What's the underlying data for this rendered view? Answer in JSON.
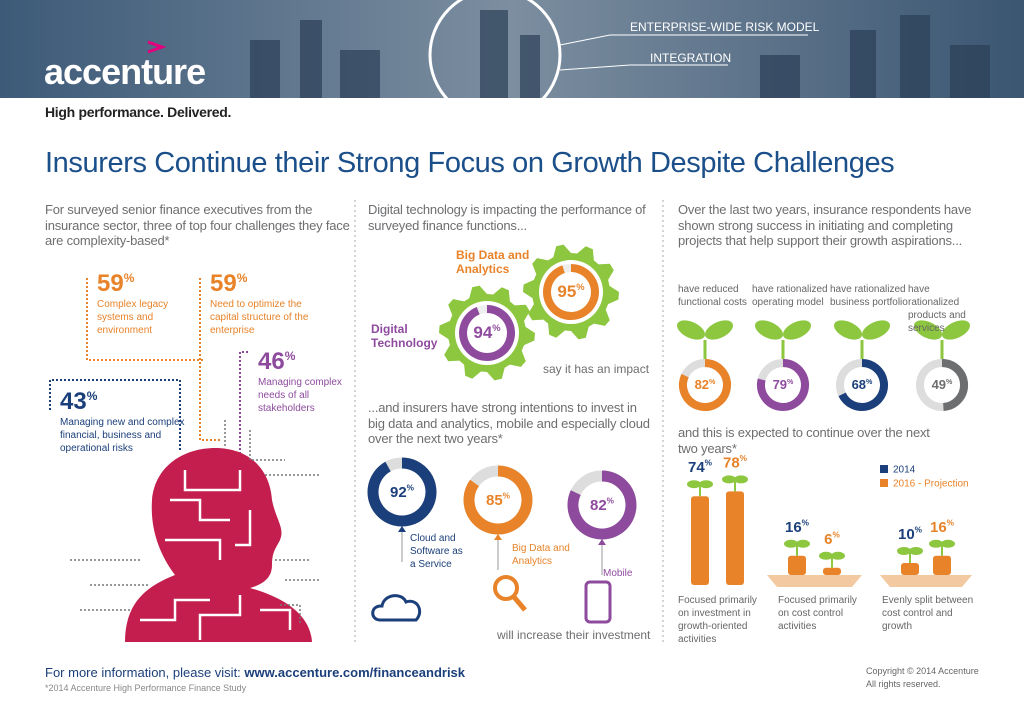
{
  "percent_sign": "%",
  "header": {
    "logo": "accenture",
    "tagline": "High performance. Delivered.",
    "model_labels": [
      "ENTERPRISE-WIDE RISK MODEL",
      "INTEGRATION"
    ]
  },
  "title": "Insurers Continue their Strong Focus on Growth Despite Challenges",
  "column1": {
    "intro": "For surveyed senior finance executives from the insurance sector, three of top four challenges they face are complexity-based*",
    "stats": [
      {
        "value": 59,
        "label": "Complex legacy systems and environment"
      },
      {
        "value": 59,
        "label": "Need to optimize the capital structure of the enterprise"
      },
      {
        "value": 46,
        "label": "Managing complex needs of all stakeholders"
      },
      {
        "value": 43,
        "label": "Managing new and complex financial, business and operational risks"
      }
    ]
  },
  "column2": {
    "intro": "Digital technology is impacting the performance of surveyed finance functions...",
    "gears": [
      {
        "label": "Digital Technology",
        "value": 94
      },
      {
        "label": "Big Data and Analytics",
        "value": 95
      }
    ],
    "gear_caption": "say it has an impact",
    "intro2": "...and insurers have strong intentions to invest in big data and analytics, mobile and especially cloud over the next two years*",
    "investments": [
      {
        "value": 92,
        "label": "Cloud and Software as a Service"
      },
      {
        "value": 85,
        "label": "Big Data and Analytics"
      },
      {
        "value": 82,
        "label": "Mobile"
      }
    ],
    "caption": "will increase their investment"
  },
  "column3": {
    "intro": "Over the last two years, insurance respondents have shown strong success in initiating and completing projects that help support their growth aspirations...",
    "rationalized": [
      {
        "label": "have reduced functional costs",
        "value": 82
      },
      {
        "label": "have rationalized operating model",
        "value": 79
      },
      {
        "label": "have rationalized business portfolio",
        "value": 68
      },
      {
        "label": "have rationalized products and services",
        "value": 49
      }
    ],
    "intro2": "and this is expected to continue over the next two years*",
    "legend": [
      {
        "name": "2014",
        "color": "#1b3f7a"
      },
      {
        "name": "2016 - Projection",
        "color": "#e8832a"
      }
    ],
    "groups": [
      {
        "values": [
          74,
          78
        ],
        "label": "Focused primarily on investment in growth-oriented activities"
      },
      {
        "values": [
          16,
          6
        ],
        "label": "Focused primarily on cost control activities"
      },
      {
        "values": [
          10,
          16
        ],
        "label": "Evenly split between cost control and growth"
      }
    ]
  },
  "footer": {
    "more_info": "For more information, please visit:",
    "url": "www.accenture.com/financeandrisk",
    "footnote": "*2014 Accenture High Performance Finance Study",
    "copyright": "Copyright © 2014 Accenture",
    "rights": "All rights reserved."
  }
}
